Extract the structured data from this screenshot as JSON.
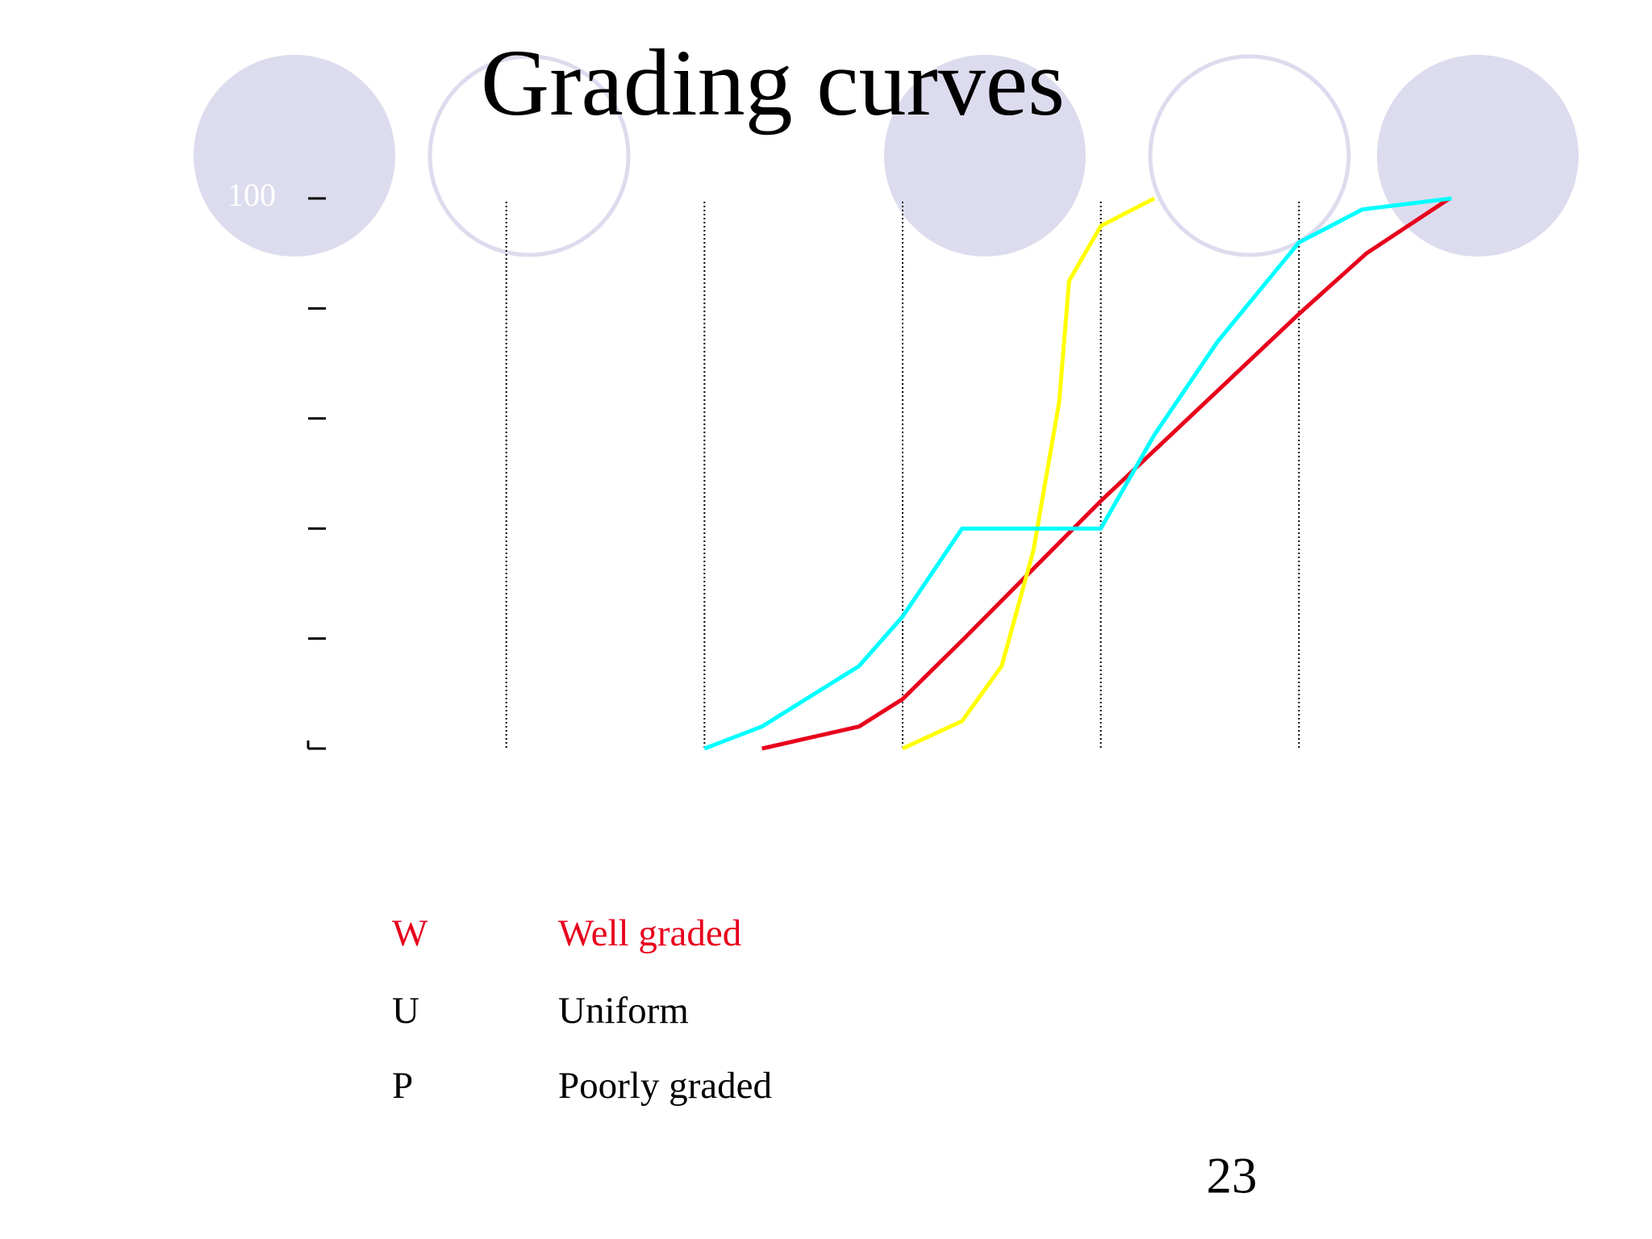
{
  "chart_data": {
    "type": "line",
    "title": "Grading curves",
    "xlim": [
      0,
      6
    ],
    "ylim": [
      0,
      100
    ],
    "xticks": [
      {
        "value": 0,
        "label": null
      },
      {
        "value": 1,
        "label": null
      },
      {
        "value": 2,
        "label": null
      },
      {
        "value": 3,
        "label": null
      },
      {
        "value": 4,
        "label": null
      },
      {
        "value": 5,
        "label": null
      }
    ],
    "yticks": [
      {
        "value": 0,
        "label": null
      },
      {
        "value": 20,
        "label": null
      },
      {
        "value": 40,
        "label": null
      },
      {
        "value": 60,
        "label": null
      },
      {
        "value": 80,
        "label": null
      },
      100
    ],
    "grid": true,
    "series": [
      {
        "name": "W",
        "color": "#e8001c",
        "x": [
          2.29,
          2.78,
          3.0,
          3.31,
          4.0,
          5.0,
          5.34,
          5.76
        ],
        "values": [
          0,
          4,
          9,
          20,
          45,
          79,
          90,
          100
        ]
      },
      {
        "name": "U",
        "color": "#ffff00",
        "x": [
          3.0,
          3.3,
          3.5,
          3.66,
          3.79,
          3.84,
          4.0,
          4.27
        ],
        "values": [
          0,
          5,
          15,
          36,
          63,
          85,
          95,
          100
        ]
      },
      {
        "name": "P",
        "color": "#00ffff",
        "x": [
          2.0,
          2.29,
          2.78,
          3.0,
          3.3,
          4.0,
          4.27,
          4.59,
          5.0,
          5.32,
          5.77
        ],
        "values": [
          0,
          4,
          15,
          24,
          40,
          40,
          57,
          74,
          92,
          98,
          100
        ]
      }
    ],
    "legend": [
      {
        "code": "W",
        "label": "Well graded",
        "color": "#e8001c"
      },
      {
        "code": "U",
        "label": "Uniform",
        "color": "#000000"
      },
      {
        "code": "P",
        "label": "Poorly graded",
        "color": "#000000"
      }
    ],
    "page_number": "23"
  }
}
